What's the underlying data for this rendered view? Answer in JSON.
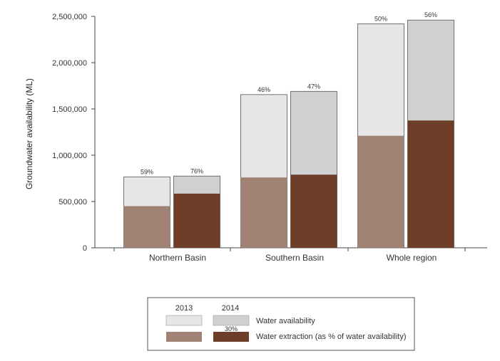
{
  "chart_data": {
    "type": "bar",
    "ylabel": "Groundwater availability (ML)",
    "ylim": [
      0,
      2500000
    ],
    "yticks": [
      0,
      500000,
      1000000,
      1500000,
      2000000,
      2500000
    ],
    "ytick_labels": [
      "0",
      "500,000",
      "1,000,000",
      "1,500,000",
      "2,000,000",
      "2,500,000"
    ],
    "categories": [
      "Northern Basin",
      "Southern Basin",
      "Whole region"
    ],
    "series": [
      {
        "name": "2013",
        "availability": [
          765000,
          1655000,
          2420000
        ],
        "extraction": [
          450000,
          760000,
          1210000
        ],
        "extraction_pct_labels": [
          "59%",
          "46%",
          "50%"
        ],
        "availability_color": "#e6e6e6",
        "extraction_color": "#a08374"
      },
      {
        "name": "2014",
        "availability": [
          775000,
          1690000,
          2460000
        ],
        "extraction": [
          585000,
          790000,
          1375000
        ],
        "extraction_pct_labels": [
          "76%",
          "47%",
          "56%"
        ],
        "availability_color": "#d0d0d0",
        "extraction_color": "#6e3d27"
      }
    ],
    "grid": false,
    "legend_position": "bottom-center"
  },
  "legend": {
    "year_2013": "2013",
    "year_2014": "2014",
    "availability_label": "Water availability",
    "extraction_label": "Water extraction (as % of water availability)",
    "example_pct": "30%"
  }
}
